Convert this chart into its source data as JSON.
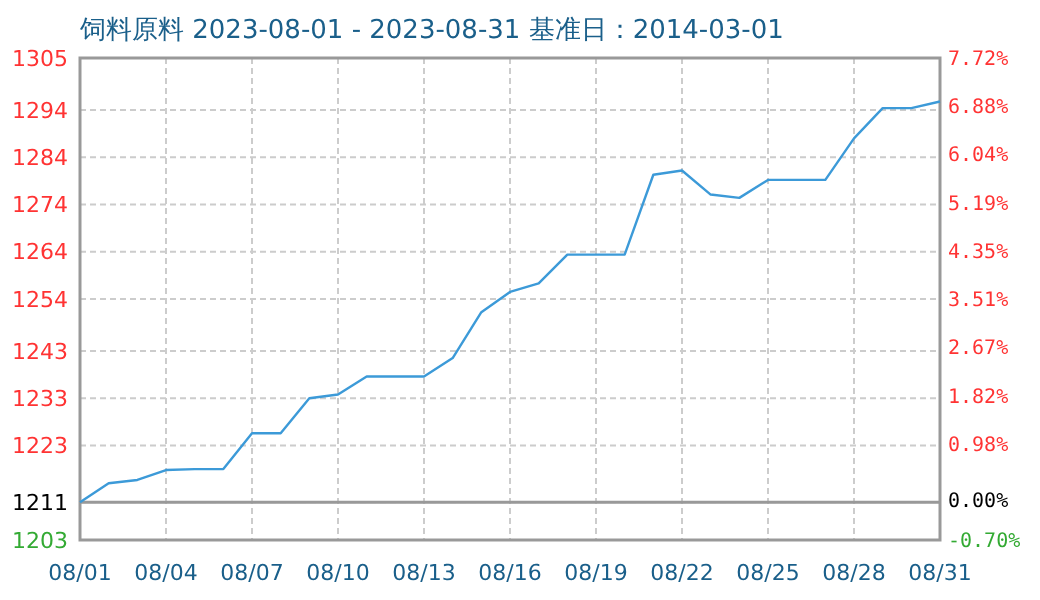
{
  "chart_data": {
    "type": "line",
    "title": "饲料原料 2023-08-01 - 2023-08-31    基准日：2014-03-01",
    "x": [
      "--08-01",
      "--08-02",
      "--08-03",
      "--08-04",
      "--08-05",
      "--08-06",
      "--08-07",
      "--08-08",
      "--08-09",
      "--08-10",
      "--08-11",
      "--08-12",
      "--08-13",
      "--08-14",
      "--08-15",
      "--08-16",
      "--08-17",
      "--08-18",
      "--08-19",
      "--08-20",
      "--08-21",
      "--08-22",
      "--08-23",
      "--08-24",
      "--08-25",
      "--08-26",
      "--08-27",
      "--08-28",
      "--08-29",
      "--08-30",
      "--08-31"
    ],
    "series": [
      {
        "color": "#3c9ad8",
        "values": [
          1211,
          1215,
          1215.7,
          1217.8,
          1218,
          1218,
          1225.6,
          1225.6,
          1233,
          1233.8,
          1237.6,
          1237.6,
          1237.6,
          1241.5,
          1251.2,
          1255.5,
          1257.3,
          1263.4,
          1263.4,
          1263.4,
          1280.3,
          1281.2,
          1276.1,
          1275.4,
          1279.2,
          1279.2,
          1279.2,
          1288,
          1294.4,
          1294.4,
          1295.8
        ]
      }
    ],
    "xlim": [
      "--08-01",
      "--08-31"
    ],
    "xticks": [
      {
        "value": "--08-01",
        "label": "08/01"
      },
      {
        "value": "--08-04",
        "label": "08/04"
      },
      {
        "value": "--08-07",
        "label": "08/07"
      },
      {
        "value": "--08-10",
        "label": "08/10"
      },
      {
        "value": "--08-13",
        "label": "08/13"
      },
      {
        "value": "--08-16",
        "label": "08/16"
      },
      {
        "value": "--08-19",
        "label": "08/19"
      },
      {
        "value": "--08-22",
        "label": "08/22"
      },
      {
        "value": "--08-25",
        "label": "08/25"
      },
      {
        "value": "--08-28",
        "label": "08/28"
      },
      {
        "value": "--08-31",
        "label": "08/31"
      }
    ],
    "ylim": [
      1203,
      1305
    ],
    "yticks": [
      1203,
      1211,
      1223,
      1233,
      1243,
      1254,
      1264,
      1274,
      1284,
      1294,
      1305
    ],
    "y2lim": [
      -0.7,
      7.72
    ],
    "y2ticks": [
      {
        "value": -0.7,
        "label": "-0.70%"
      },
      {
        "value": 0,
        "label": "0.00%"
      },
      {
        "value": 0.98,
        "label": "0.98%"
      },
      {
        "value": 1.82,
        "label": "1.82%"
      },
      {
        "value": 2.67,
        "label": "2.67%"
      },
      {
        "value": 3.51,
        "label": "3.51%"
      },
      {
        "value": 4.35,
        "label": "4.35%"
      },
      {
        "value": 5.19,
        "label": "5.19%"
      },
      {
        "value": 6.04,
        "label": "6.04%"
      },
      {
        "value": 6.88,
        "label": "6.88%"
      },
      {
        "value": 7.72,
        "label": "7.72%"
      }
    ],
    "ref_lines": [
      {
        "axis": "y",
        "value": 1211,
        "color": "#999999"
      }
    ],
    "grid": true,
    "marker": "none",
    "line_style": "solid"
  }
}
